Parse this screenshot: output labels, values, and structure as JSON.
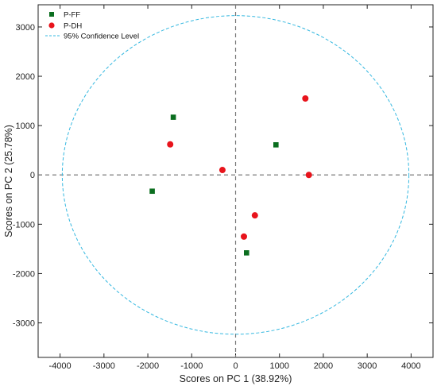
{
  "chart_data": {
    "type": "scatter",
    "title": "",
    "xlabel": "Scores on PC 1 (38.92%)",
    "ylabel": "Scores on PC 2 (25.78%)",
    "xlim": [
      -4500,
      4500
    ],
    "ylim": [
      -3700,
      3450
    ],
    "xticks": [
      -4000,
      -3000,
      -2000,
      -1000,
      0,
      1000,
      2000,
      3000,
      4000
    ],
    "yticks": [
      -3000,
      -2000,
      -1000,
      0,
      1000,
      2000,
      3000
    ],
    "grid": false,
    "legend_position": "top-left",
    "series": [
      {
        "name": "P-FF",
        "marker": "square",
        "color": "#0b6e1f",
        "points": [
          [
            -1420,
            1170
          ],
          [
            -1900,
            -330
          ],
          [
            920,
            610
          ],
          [
            250,
            -1580
          ]
        ]
      },
      {
        "name": "P-DH",
        "marker": "circle",
        "color": "#e8141c",
        "points": [
          [
            -1490,
            620
          ],
          [
            -300,
            100
          ],
          [
            1590,
            1550
          ],
          [
            1670,
            0
          ],
          [
            440,
            -820
          ],
          [
            190,
            -1250
          ]
        ]
      }
    ],
    "confidence_ellipse": {
      "name": "95% Confidence Level",
      "color": "#35b8e0",
      "center": [
        0,
        0
      ],
      "radius_x": 3950,
      "radius_y": 3230
    },
    "reference_lines": {
      "x": 0,
      "y": 0,
      "color": "#7a7a7a"
    }
  }
}
